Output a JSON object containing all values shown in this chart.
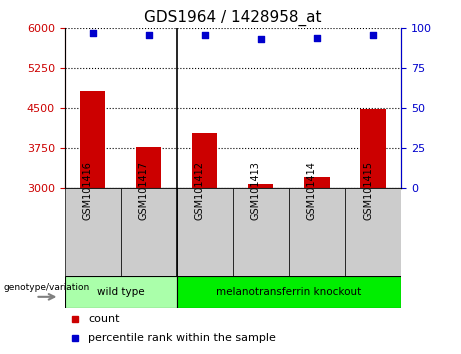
{
  "title": "GDS1964 / 1428958_at",
  "samples": [
    "GSM101416",
    "GSM101417",
    "GSM101412",
    "GSM101413",
    "GSM101414",
    "GSM101415"
  ],
  "bar_values": [
    4820,
    3760,
    4020,
    3060,
    3200,
    4490
  ],
  "percentile_values": [
    97,
    96,
    96,
    93,
    94,
    96
  ],
  "bar_color": "#cc0000",
  "dot_color": "#0000cc",
  "ylim_left": [
    3000,
    6000
  ],
  "ylim_right": [
    0,
    100
  ],
  "yticks_left": [
    3000,
    3750,
    4500,
    5250,
    6000
  ],
  "yticks_right": [
    0,
    25,
    50,
    75,
    100
  ],
  "groups": [
    {
      "label": "wild type",
      "indices": [
        0,
        1
      ],
      "color": "#aaffaa"
    },
    {
      "label": "melanotransferrin knockout",
      "indices": [
        2,
        3,
        4,
        5
      ],
      "color": "#00ee00"
    }
  ],
  "genotype_label": "genotype/variation",
  "legend_items": [
    {
      "label": "count",
      "color": "#cc0000"
    },
    {
      "label": "percentile rank within the sample",
      "color": "#0000cc"
    }
  ],
  "left_tick_color": "#cc0000",
  "right_tick_color": "#0000cc",
  "sample_bg_color": "#cccccc",
  "separator_color": "#000000",
  "grid_linestyle": "dotted",
  "title_fontsize": 11,
  "tick_fontsize": 8,
  "sample_fontsize": 7,
  "legend_fontsize": 8
}
